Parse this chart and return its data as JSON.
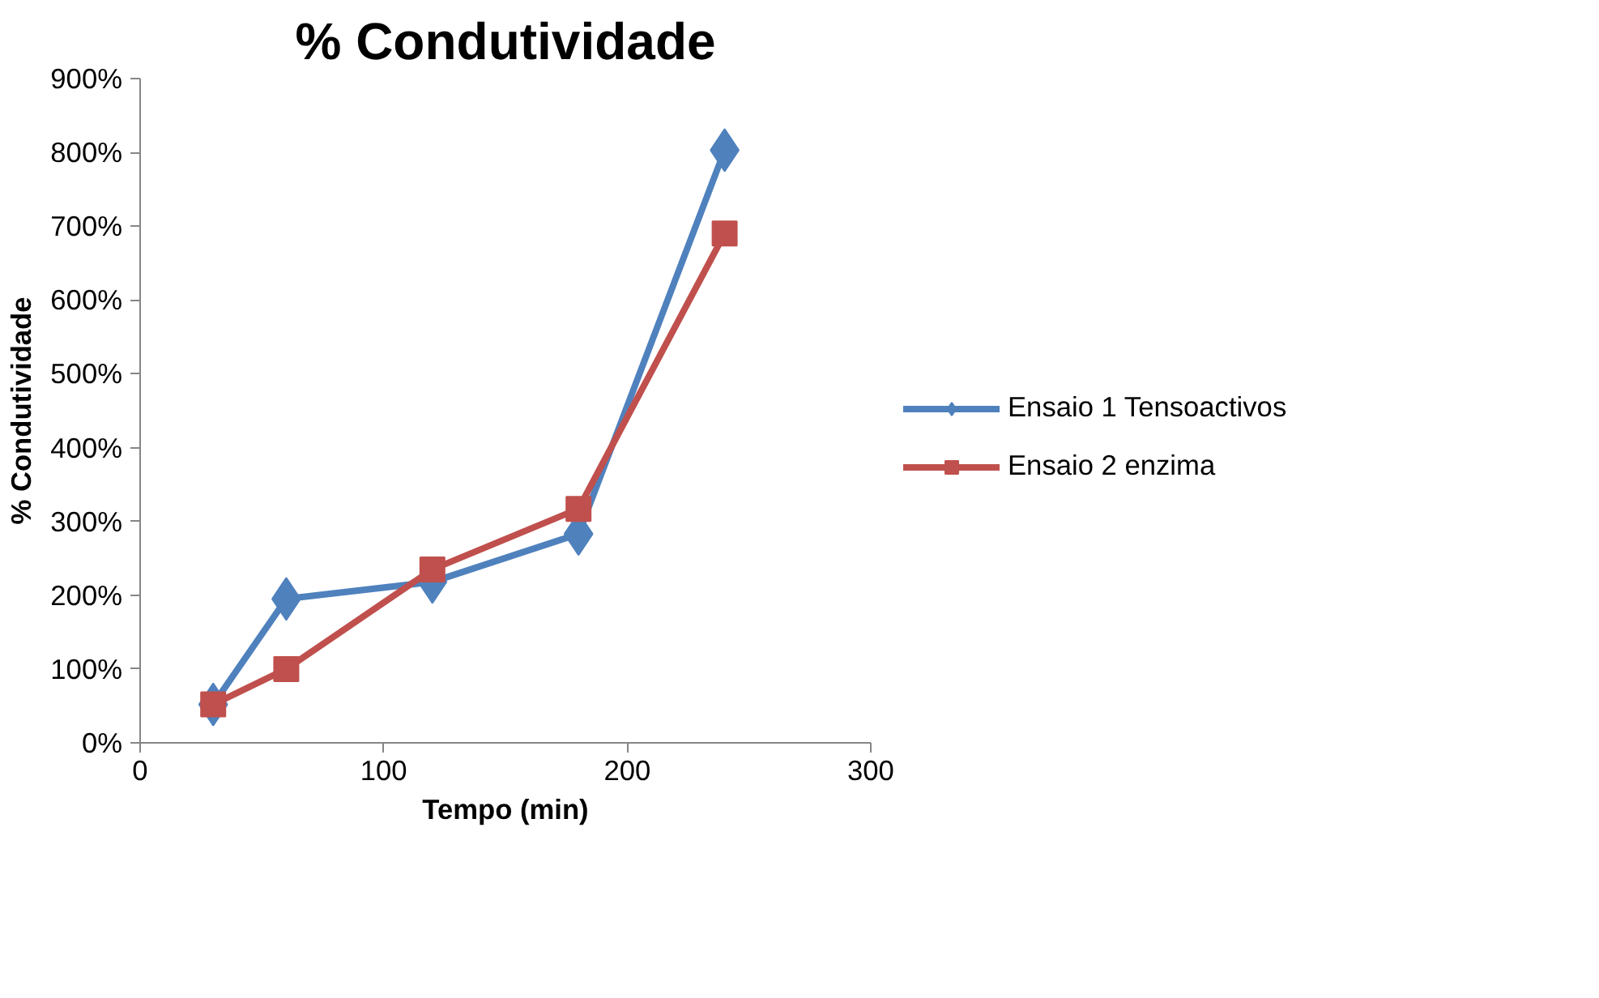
{
  "chart_data": {
    "type": "line",
    "title": "% Condutividade",
    "xlabel": "Tempo (min)",
    "ylabel": "% Condutividade",
    "x": [
      30,
      60,
      120,
      180,
      240
    ],
    "series": [
      {
        "name": "Ensaio 1 Tensoactivos",
        "color": "#4f81bd",
        "marker": "diamond",
        "values": [
          52,
          195,
          218,
          283,
          803
        ]
      },
      {
        "name": "Ensaio 2 enzima",
        "color": "#c0504d",
        "marker": "square",
        "values": [
          52,
          100,
          235,
          317,
          690
        ]
      }
    ],
    "xlim": [
      0,
      300
    ],
    "xticks": [
      0,
      100,
      200,
      300
    ],
    "ylim": [
      0,
      900
    ],
    "yticks": [
      {
        "value": 0,
        "label": "0%"
      },
      {
        "value": 100,
        "label": "100%"
      },
      {
        "value": 200,
        "label": "200%"
      },
      {
        "value": 300,
        "label": "300%"
      },
      {
        "value": 400,
        "label": "400%"
      },
      {
        "value": 500,
        "label": "500%"
      },
      {
        "value": 600,
        "label": "600%"
      },
      {
        "value": 700,
        "label": "700%"
      },
      {
        "value": 800,
        "label": "800%"
      },
      {
        "value": 900,
        "label": "900%"
      }
    ],
    "grid": false,
    "legend": "right",
    "line_style": "solid"
  }
}
